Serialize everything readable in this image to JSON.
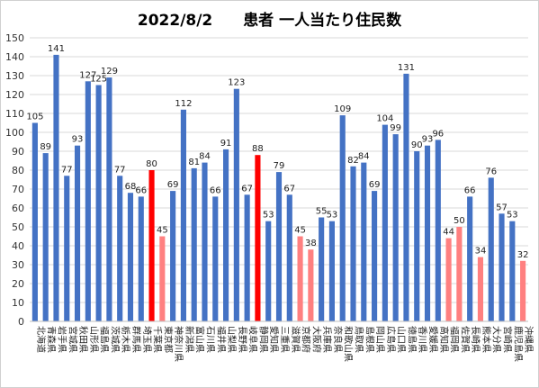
{
  "chart_data": {
    "type": "bar",
    "title_date": "2022/8/2",
    "title_text": "患者 一人当たり住民数",
    "ylim": [
      0,
      150
    ],
    "ytick_step": 10,
    "grid": true,
    "colors": {
      "normal": "#4472c4",
      "highlight": "#ff0000",
      "light": "#ff8080"
    },
    "categories": [
      "北海道",
      "青森県",
      "岩手県",
      "宮城県",
      "秋田県",
      "山形県",
      "福島県",
      "茨城県",
      "栃木県",
      "群馬県",
      "埼玉県",
      "千葉県",
      "東京都",
      "神奈川県",
      "新潟県",
      "富山県",
      "石川県",
      "福井県",
      "山梨県",
      "長野県",
      "岐阜県",
      "静岡県",
      "愛知県",
      "三重県",
      "滋賀県",
      "京都府",
      "大阪府",
      "兵庫県",
      "奈良県",
      "和歌山県",
      "鳥取県",
      "島根県",
      "岡山県",
      "広島県",
      "山口県",
      "徳島県",
      "香川県",
      "愛媛県",
      "高知県",
      "福岡県",
      "佐賀県",
      "長崎県",
      "熊本県",
      "大分県",
      "宮崎県",
      "鹿児島県",
      "沖縄県"
    ],
    "values": [
      105,
      89,
      141,
      77,
      93,
      127,
      125,
      129,
      77,
      68,
      66,
      80,
      45,
      69,
      112,
      81,
      84,
      66,
      91,
      123,
      67,
      88,
      53,
      79,
      67,
      45,
      38,
      55,
      53,
      109,
      82,
      84,
      69,
      104,
      99,
      131,
      90,
      93,
      96,
      44,
      50,
      66,
      34,
      76,
      57,
      53,
      32
    ],
    "highlight": [
      "normal",
      "normal",
      "normal",
      "normal",
      "normal",
      "normal",
      "normal",
      "normal",
      "normal",
      "normal",
      "normal",
      "highlight",
      "light",
      "normal",
      "normal",
      "normal",
      "normal",
      "normal",
      "normal",
      "normal",
      "normal",
      "highlight",
      "normal",
      "normal",
      "normal",
      "light",
      "light",
      "normal",
      "normal",
      "normal",
      "normal",
      "normal",
      "normal",
      "normal",
      "normal",
      "normal",
      "normal",
      "normal",
      "normal",
      "light",
      "light",
      "normal",
      "light",
      "normal",
      "normal",
      "normal",
      "light"
    ]
  }
}
